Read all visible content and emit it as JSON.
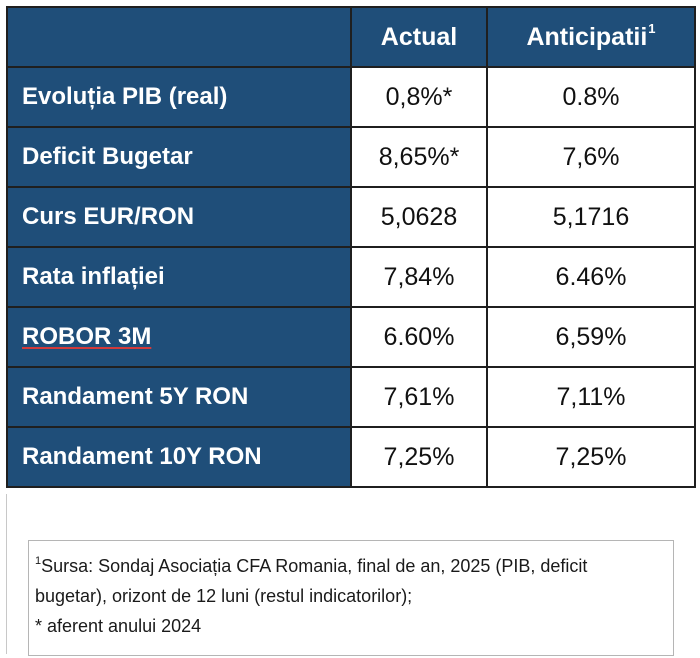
{
  "table": {
    "columns": {
      "corner": "",
      "actual": "Actual",
      "anticipated": "Anticipatii",
      "anticipated_footnote": "1"
    },
    "rows": [
      {
        "label": "Evoluția PIB (real)",
        "actual": "0,8%*",
        "anticipated": "0.8%"
      },
      {
        "label": "Deficit Bugetar",
        "actual": "8,65%*",
        "anticipated": "7,6%"
      },
      {
        "label": "Curs EUR/RON",
        "actual": "5,0628",
        "anticipated": "5,1716"
      },
      {
        "label": "Rata inflației",
        "actual": "7,84%",
        "anticipated": "6.46%"
      },
      {
        "label": "ROBOR 3M",
        "actual": "6.60%",
        "anticipated": "6,59%"
      },
      {
        "label": "Randament 5Y RON",
        "actual": "7,61%",
        "anticipated": "7,11%"
      },
      {
        "label": "Randament 10Y RON",
        "actual": "7,25%",
        "anticipated": "7,25%"
      }
    ]
  },
  "notes": {
    "source_marker": "1",
    "source_line_1": "Sursa: Sondaj Asociația CFA Romania, final de an, 2025 (PIB, deficit",
    "source_line_2": "bugetar), orizont de 12 luni (restul indicatorilor);",
    "asterisk_note": "* aferent anului 2024"
  },
  "colors": {
    "header_bg": "#1f4e79",
    "header_text": "#ffffff",
    "cell_bg": "#ffffff",
    "border": "#1f1f1f",
    "spellcheck_underline": "#d23b3b"
  }
}
